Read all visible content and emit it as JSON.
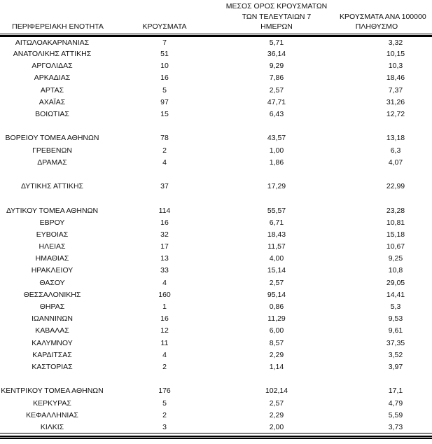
{
  "colors": {
    "background": "#ffffff",
    "text": "#111111",
    "rule": "#000000"
  },
  "table": {
    "columns": [
      {
        "id": "region",
        "lines": [
          "ΠΕΡΙΦΕΡΕΙΑΚΗ ΕΝΟΤΗΤΑ"
        ]
      },
      {
        "id": "cases",
        "lines": [
          "ΚΡΟΥΣΜΑΤΑ"
        ]
      },
      {
        "id": "avg_7d",
        "lines": [
          "ΜΕΣΟΣ ΟΡΟΣ ΚΡΟΥΣΜΑΤΩΝ",
          "ΤΩΝ ΤΕΛΕΥΤΑΙΩΝ 7",
          "ΗΜΕΡΩΝ"
        ]
      },
      {
        "id": "per_100k",
        "lines": [
          "ΚΡΟΥΣΜΑΤΑ ΑΝΑ 100000",
          "ΠΛΗΘΥΣΜΟ"
        ]
      }
    ],
    "sections": [
      {
        "rows": [
          {
            "region": "ΑΙΤΩΛΟΑΚΑΡΝΑΝΙΑΣ",
            "cases": "7",
            "avg_7d": "5,71",
            "per_100k": "3,32"
          },
          {
            "region": "ΑΝΑΤΟΛΙΚΗΣ ΑΤΤΙΚΗΣ",
            "cases": "51",
            "avg_7d": "36,14",
            "per_100k": "10,15"
          },
          {
            "region": "ΑΡΓΟΛΙΔΑΣ",
            "cases": "10",
            "avg_7d": "9,29",
            "per_100k": "10,3"
          },
          {
            "region": "ΑΡΚΑΔΙΑΣ",
            "cases": "16",
            "avg_7d": "7,86",
            "per_100k": "18,46"
          },
          {
            "region": "ΑΡΤΑΣ",
            "cases": "5",
            "avg_7d": "2,57",
            "per_100k": "7,37"
          },
          {
            "region": "ΑΧΑΪΑΣ",
            "cases": "97",
            "avg_7d": "47,71",
            "per_100k": "31,26"
          },
          {
            "region": "ΒΟΙΩΤΙΑΣ",
            "cases": "15",
            "avg_7d": "6,43",
            "per_100k": "12,72"
          }
        ]
      },
      {
        "rows": [
          {
            "region": "ΒΟΡΕΙΟΥ ΤΟΜΕΑ ΑΘΗΝΩΝ",
            "cases": "78",
            "avg_7d": "43,57",
            "per_100k": "13,18"
          },
          {
            "region": "ΓΡΕΒΕΝΩΝ",
            "cases": "2",
            "avg_7d": "1,00",
            "per_100k": "6,3"
          },
          {
            "region": "ΔΡΑΜΑΣ",
            "cases": "4",
            "avg_7d": "1,86",
            "per_100k": "4,07"
          }
        ]
      },
      {
        "rows": [
          {
            "region": "ΔΥΤΙΚΗΣ ΑΤΤΙΚΗΣ",
            "cases": "37",
            "avg_7d": "17,29",
            "per_100k": "22,99"
          }
        ]
      },
      {
        "rows": [
          {
            "region": "ΔΥΤΙΚΟΥ ΤΟΜΕΑ ΑΘΗΝΩΝ",
            "cases": "114",
            "avg_7d": "55,57",
            "per_100k": "23,28"
          },
          {
            "region": "ΕΒΡΟΥ",
            "cases": "16",
            "avg_7d": "6,71",
            "per_100k": "10,81"
          },
          {
            "region": "ΕΥΒΟΙΑΣ",
            "cases": "32",
            "avg_7d": "18,43",
            "per_100k": "15,18"
          },
          {
            "region": "ΗΛΕΙΑΣ",
            "cases": "17",
            "avg_7d": "11,57",
            "per_100k": "10,67"
          },
          {
            "region": "ΗΜΑΘΙΑΣ",
            "cases": "13",
            "avg_7d": "4,00",
            "per_100k": "9,25"
          },
          {
            "region": "ΗΡΑΚΛΕΙΟΥ",
            "cases": "33",
            "avg_7d": "15,14",
            "per_100k": "10,8"
          },
          {
            "region": "ΘΑΣΟΥ",
            "cases": "4",
            "avg_7d": "2,57",
            "per_100k": "29,05"
          },
          {
            "region": "ΘΕΣΣΑΛΟΝΙΚΗΣ",
            "cases": "160",
            "avg_7d": "95,14",
            "per_100k": "14,41"
          },
          {
            "region": "ΘΗΡΑΣ",
            "cases": "1",
            "avg_7d": "0,86",
            "per_100k": "5,3"
          },
          {
            "region": "ΙΩΑΝΝΙΝΩΝ",
            "cases": "16",
            "avg_7d": "11,29",
            "per_100k": "9,53"
          },
          {
            "region": "ΚΑΒΑΛΑΣ",
            "cases": "12",
            "avg_7d": "6,00",
            "per_100k": "9,61"
          },
          {
            "region": "ΚΑΛΥΜΝΟΥ",
            "cases": "11",
            "avg_7d": "8,57",
            "per_100k": "37,35"
          },
          {
            "region": "ΚΑΡΔΙΤΣΑΣ",
            "cases": "4",
            "avg_7d": "2,29",
            "per_100k": "3,52"
          },
          {
            "region": "ΚΑΣΤΟΡΙΑΣ",
            "cases": "2",
            "avg_7d": "1,14",
            "per_100k": "3,97"
          }
        ]
      },
      {
        "rows": [
          {
            "region": "ΚΕΝΤΡΙΚΟΥ ΤΟΜΕΑ ΑΘΗΝΩΝ",
            "cases": "176",
            "avg_7d": "102,14",
            "per_100k": "17,1"
          },
          {
            "region": "ΚΕΡΚΥΡΑΣ",
            "cases": "5",
            "avg_7d": "2,57",
            "per_100k": "4,79"
          },
          {
            "region": "ΚΕΦΑΛΛΗΝΙΑΣ",
            "cases": "2",
            "avg_7d": "2,29",
            "per_100k": "5,59"
          },
          {
            "region": "ΚΙΛΚΙΣ",
            "cases": "3",
            "avg_7d": "2,00",
            "per_100k": "3,73"
          }
        ]
      }
    ]
  }
}
